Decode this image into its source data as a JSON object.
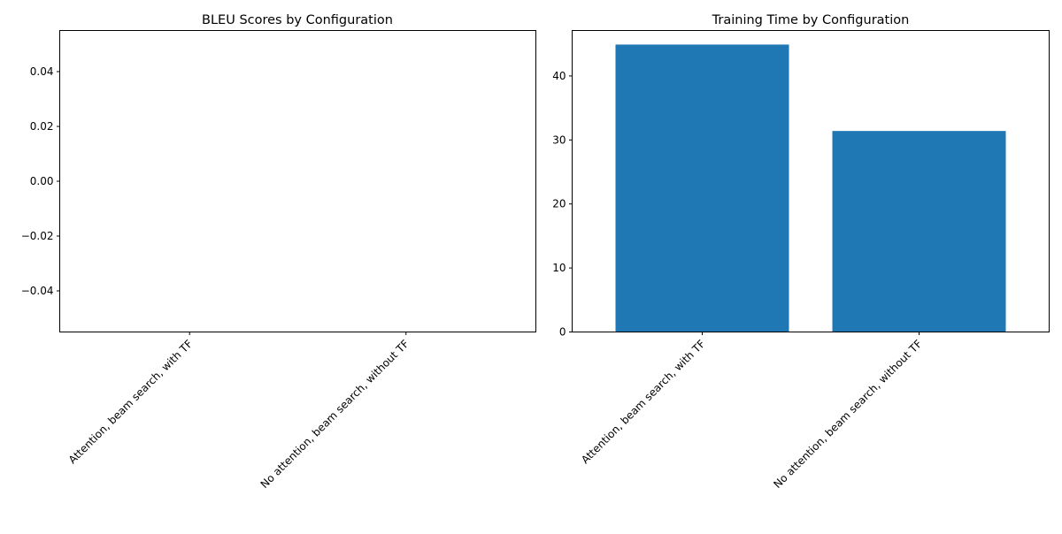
{
  "chart_data": [
    {
      "type": "bar",
      "title": "BLEU Scores by Configuration",
      "xlabel": "",
      "ylabel": "",
      "categories": [
        "Attention, beam search, with TF",
        "No attention, beam search, without TF"
      ],
      "values": [
        0,
        0
      ],
      "ylim": [
        -0.055,
        0.055
      ],
      "yticks": [
        0.04,
        0.02,
        0.0,
        -0.02,
        -0.04
      ],
      "ytick_labels": [
        "0.04",
        "0.02",
        "0.00",
        "−0.02",
        "−0.04"
      ],
      "grid": false,
      "bar_color": "#1f77b4"
    },
    {
      "type": "bar",
      "title": "Training Time by Configuration",
      "xlabel": "",
      "ylabel": "",
      "categories": [
        "Attention, beam search, with TF",
        "No attention, beam search, without TF"
      ],
      "values": [
        44.9,
        31.4
      ],
      "ylim": [
        0,
        47.1
      ],
      "yticks": [
        40,
        30,
        20,
        10,
        0
      ],
      "ytick_labels": [
        "40",
        "30",
        "20",
        "10",
        "0"
      ],
      "grid": false,
      "bar_color": "#1f77b4"
    }
  ]
}
